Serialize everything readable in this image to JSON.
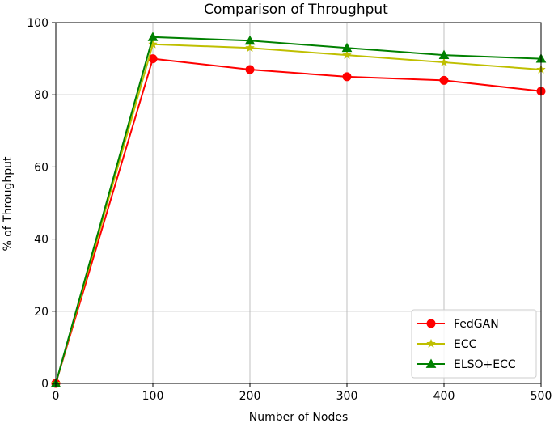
{
  "chart_data": {
    "type": "line",
    "title": "Comparison of Throughput",
    "xlabel": "Number of Nodes",
    "ylabel": "% of Throughput",
    "x": [
      0,
      100,
      200,
      300,
      400,
      500
    ],
    "xlim": [
      0,
      500
    ],
    "ylim": [
      0,
      100
    ],
    "xticks": [
      0,
      100,
      200,
      300,
      400,
      500
    ],
    "yticks": [
      0,
      20,
      40,
      60,
      80,
      100
    ],
    "grid": true,
    "legend_position": "bottom-right",
    "series": [
      {
        "name": "FedGAN",
        "values": [
          0,
          90,
          87,
          85,
          84,
          81
        ],
        "color": "#ff0000",
        "marker": "circle"
      },
      {
        "name": "ECC",
        "values": [
          0,
          94,
          93,
          91,
          89,
          87
        ],
        "color": "#bfbf00",
        "marker": "star"
      },
      {
        "name": "ELSO+ECC",
        "values": [
          0,
          96,
          95,
          93,
          91,
          90
        ],
        "color": "#008000",
        "marker": "triangle"
      }
    ]
  }
}
